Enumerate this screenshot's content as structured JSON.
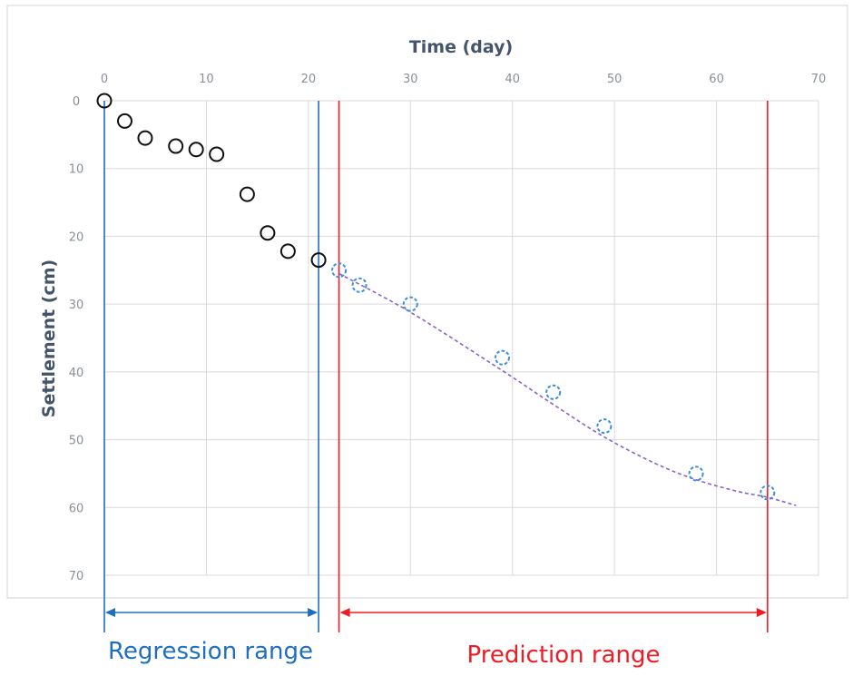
{
  "colors": {
    "grid": "#d9d9d9",
    "frame": "#d0d4db",
    "measured": "#111111",
    "predicted": "#3d8fd6",
    "fit_line": "#8a63c7",
    "regression": "#1f6fc0",
    "prediction": "#ee1c24"
  },
  "chart_data": {
    "type": "scatter",
    "title": "",
    "xlabel": "Time (day)",
    "ylabel": "Settlement (cm)",
    "xlim": [
      0,
      70
    ],
    "ylim": [
      0,
      70
    ],
    "y_inverted": true,
    "x_axis_position": "top",
    "grid": true,
    "xticks": [
      "0",
      "10",
      "20",
      "30",
      "40",
      "50",
      "60",
      "70"
    ],
    "yticks": [
      "0",
      "10",
      "20",
      "30",
      "40",
      "50",
      "60",
      "70"
    ],
    "series": [
      {
        "marker": "open-circle",
        "x": [
          0,
          2,
          4,
          7,
          9,
          11,
          14,
          16,
          18,
          21
        ],
        "y": [
          0,
          3,
          5.5,
          6.7,
          7.2,
          7.9,
          13.8,
          19.5,
          22.2,
          23.5
        ]
      },
      {
        "marker": "dashed-open-circle",
        "x": [
          23,
          25,
          30,
          39,
          44,
          49,
          58,
          65
        ],
        "y": [
          25,
          27.2,
          30,
          37.9,
          43,
          48,
          55,
          57.8
        ]
      },
      {
        "line": "dashed",
        "x": [
          23,
          30,
          39,
          44,
          49,
          54,
          58,
          62,
          65,
          67.8
        ],
        "y": [
          25.5,
          31.2,
          39.8,
          44.8,
          49.6,
          53.5,
          55.9,
          57.6,
          58.5,
          59.7
        ]
      }
    ],
    "annotations": {
      "regression": {
        "label": "Regression range",
        "x_start": 0,
        "x_end": 21
      },
      "prediction": {
        "label": "Prediction range",
        "x_start": 23,
        "x_end": 65
      }
    }
  }
}
